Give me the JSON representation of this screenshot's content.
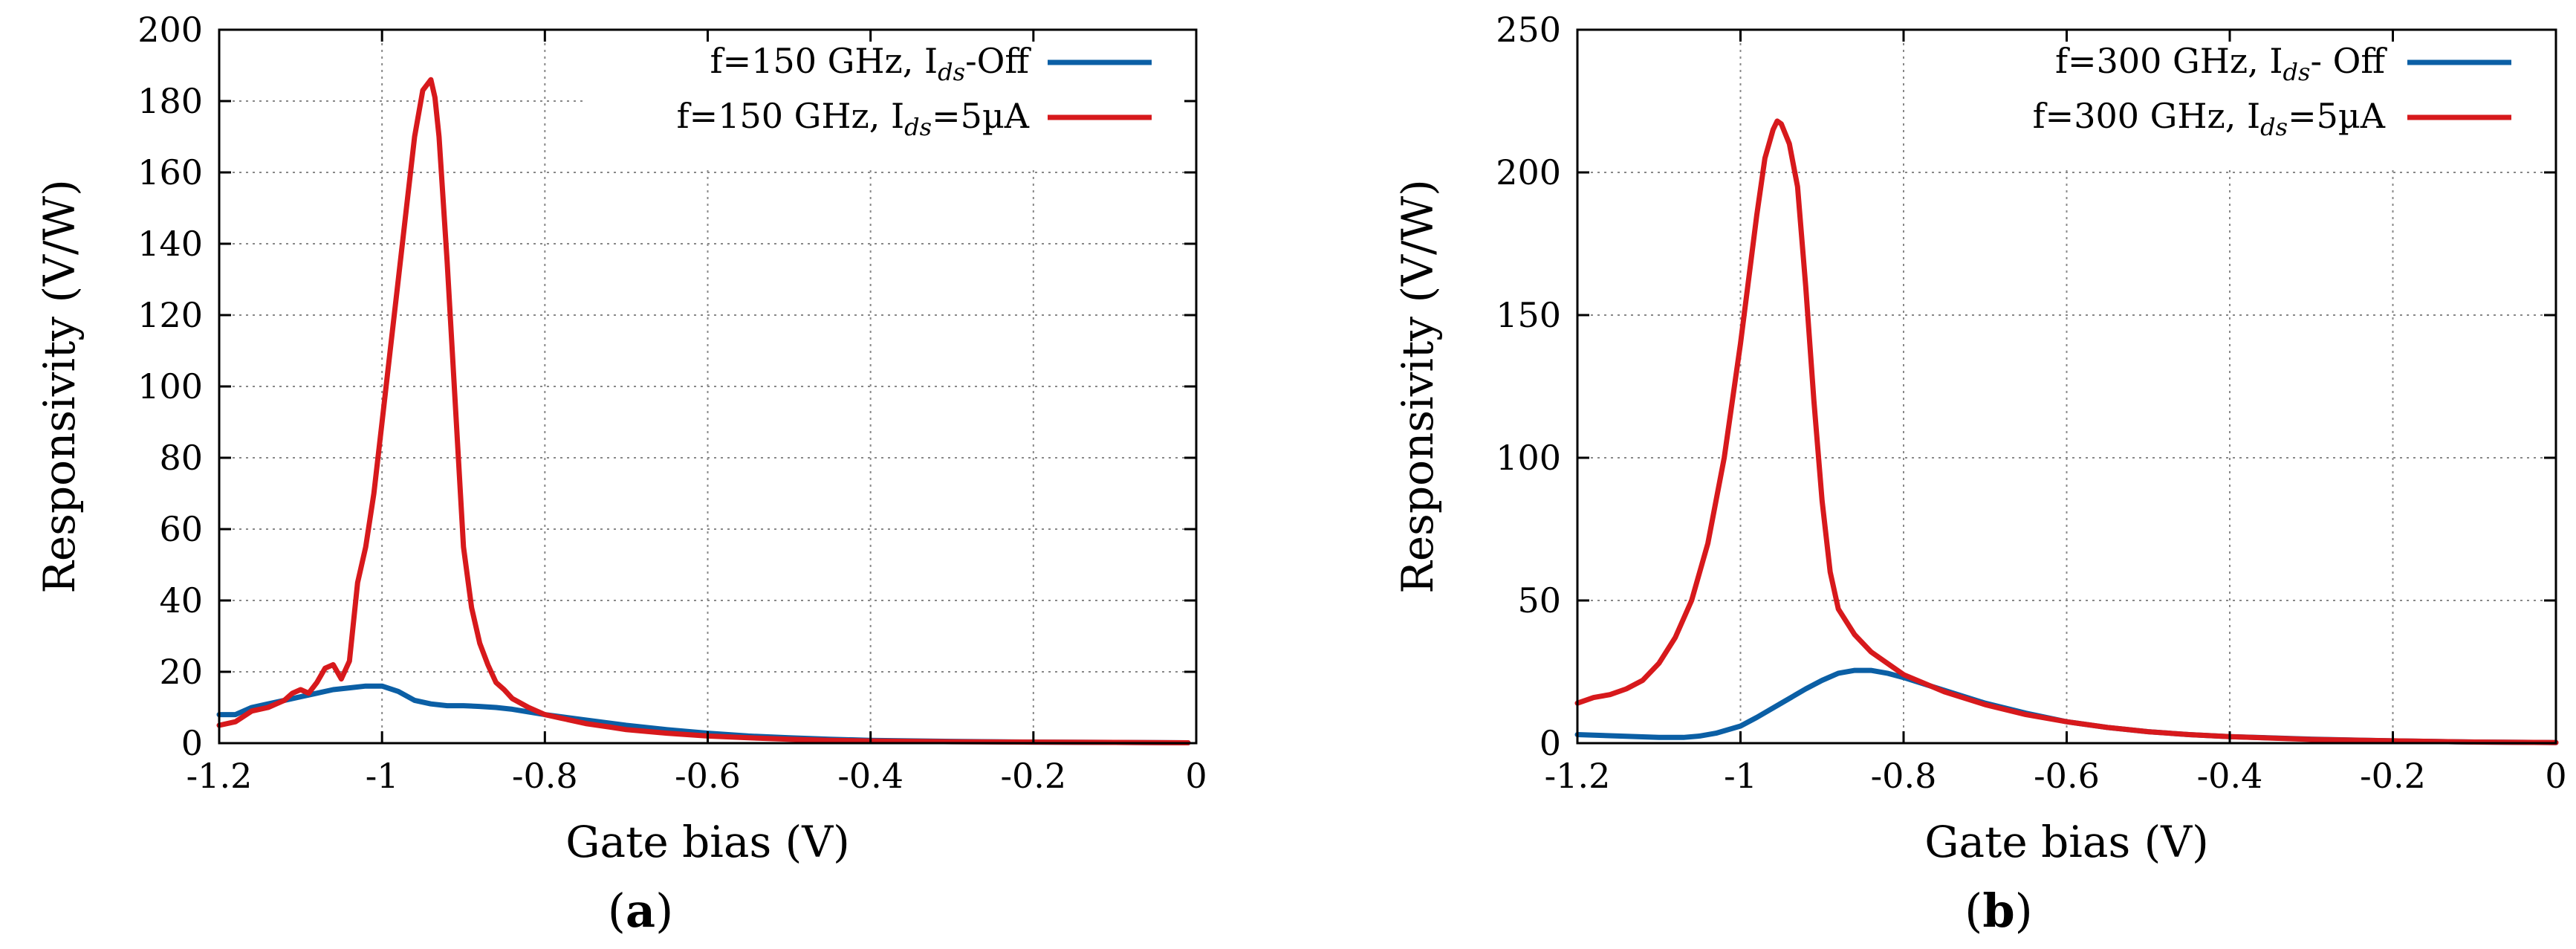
{
  "chart_data": [
    {
      "id": "a",
      "type": "line",
      "caption": "a",
      "xlabel": "Gate bias (V)",
      "ylabel": "Responsivity (V/W)",
      "xlim": [
        -1.2,
        0
      ],
      "ylim": [
        0,
        200
      ],
      "xticks": [
        -1.2,
        -1,
        -0.8,
        -0.6,
        -0.4,
        -0.2,
        0
      ],
      "yticks": [
        0,
        20,
        40,
        60,
        80,
        100,
        120,
        140,
        160,
        180,
        200
      ],
      "xtick_labels": [
        "-1.2",
        "-1",
        "-0.8",
        "-0.6",
        "-0.4",
        "-0.2",
        "0"
      ],
      "ytick_labels": [
        "0",
        "20",
        "40",
        "60",
        "80",
        "100",
        "120",
        "140",
        "160",
        "180",
        "200"
      ],
      "grid": true,
      "legend_position": "top-right",
      "series": [
        {
          "name": "f=150 GHz, I_ds-Off",
          "legend_main": "f=150 GHz, I",
          "legend_sub": "ds",
          "legend_tail": "-Off",
          "color": "#0b5fa5",
          "x": [
            -1.2,
            -1.18,
            -1.16,
            -1.14,
            -1.12,
            -1.1,
            -1.08,
            -1.06,
            -1.04,
            -1.02,
            -1.0,
            -0.98,
            -0.96,
            -0.94,
            -0.92,
            -0.9,
            -0.88,
            -0.86,
            -0.84,
            -0.8,
            -0.75,
            -0.7,
            -0.65,
            -0.6,
            -0.55,
            -0.5,
            -0.45,
            -0.4,
            -0.3,
            -0.2,
            -0.1,
            -0.01
          ],
          "y": [
            8,
            8,
            10,
            11,
            12,
            13,
            14,
            15,
            15.5,
            16,
            16,
            14.5,
            12,
            11,
            10.5,
            10.5,
            10.3,
            10,
            9.5,
            8,
            6.5,
            5,
            3.8,
            2.8,
            2,
            1.5,
            1.1,
            0.8,
            0.5,
            0.3,
            0.2,
            0.1
          ]
        },
        {
          "name": "f=150 GHz, I_ds=5µA",
          "legend_main": "f=150 GHz, I",
          "legend_sub": "ds",
          "legend_tail": "=5µA",
          "color": "#d7191c",
          "x": [
            -1.2,
            -1.18,
            -1.16,
            -1.14,
            -1.12,
            -1.11,
            -1.1,
            -1.09,
            -1.08,
            -1.07,
            -1.06,
            -1.05,
            -1.04,
            -1.03,
            -1.02,
            -1.01,
            -1.0,
            -0.99,
            -0.98,
            -0.97,
            -0.96,
            -0.95,
            -0.94,
            -0.935,
            -0.93,
            -0.92,
            -0.91,
            -0.9,
            -0.89,
            -0.88,
            -0.87,
            -0.86,
            -0.85,
            -0.84,
            -0.82,
            -0.8,
            -0.78,
            -0.75,
            -0.72,
            -0.7,
            -0.65,
            -0.6,
            -0.55,
            -0.5,
            -0.45,
            -0.4,
            -0.3,
            -0.2,
            -0.1,
            -0.01
          ],
          "y": [
            5,
            6,
            9,
            10,
            12,
            14,
            15,
            14,
            17,
            21,
            22,
            18,
            23,
            45,
            55,
            70,
            90,
            110,
            130,
            150,
            170,
            183,
            186,
            181,
            170,
            135,
            95,
            55,
            38,
            28,
            22,
            17,
            15,
            12.5,
            10,
            8,
            7,
            5.5,
            4.5,
            3.8,
            2.8,
            2,
            1.5,
            1.1,
            0.8,
            0.6,
            0.4,
            0.3,
            0.2,
            0.1
          ]
        }
      ]
    },
    {
      "id": "b",
      "type": "line",
      "caption": "b",
      "xlabel": "Gate bias (V)",
      "ylabel": "Responsivity (V/W)",
      "xlim": [
        -1.2,
        0
      ],
      "ylim": [
        0,
        250
      ],
      "xticks": [
        -1.2,
        -1,
        -0.8,
        -0.6,
        -0.4,
        -0.2,
        0
      ],
      "yticks": [
        0,
        50,
        100,
        150,
        200,
        250
      ],
      "xtick_labels": [
        "-1.2",
        "-1",
        "-0.8",
        "-0.6",
        "-0.4",
        "-0.2",
        "0"
      ],
      "ytick_labels": [
        "0",
        "50",
        "100",
        "150",
        "200",
        "250"
      ],
      "grid": true,
      "legend_position": "top-right",
      "series": [
        {
          "name": "f=300 GHz, I_ds- Off",
          "legend_main": "f=300 GHz, I",
          "legend_sub": "ds",
          "legend_tail": "- Off",
          "color": "#0b5fa5",
          "x": [
            -1.2,
            -1.15,
            -1.1,
            -1.07,
            -1.05,
            -1.03,
            -1.0,
            -0.98,
            -0.95,
            -0.92,
            -0.9,
            -0.88,
            -0.86,
            -0.84,
            -0.82,
            -0.8,
            -0.75,
            -0.7,
            -0.65,
            -0.6,
            -0.55,
            -0.5,
            -0.45,
            -0.4,
            -0.3,
            -0.2,
            -0.1,
            0.0
          ],
          "y": [
            3,
            2.5,
            2,
            2,
            2.5,
            3.5,
            6,
            9,
            14,
            19,
            22,
            24.5,
            25.5,
            25.5,
            24.5,
            23,
            18.5,
            14,
            10.5,
            7.5,
            5.5,
            4,
            3,
            2.3,
            1.4,
            0.8,
            0.4,
            0.2
          ]
        },
        {
          "name": "f=300 GHz, I_ds=5µA",
          "legend_main": "f=300 GHz, I",
          "legend_sub": "ds",
          "legend_tail": "=5µA",
          "color": "#d7191c",
          "x": [
            -1.2,
            -1.18,
            -1.16,
            -1.14,
            -1.12,
            -1.1,
            -1.08,
            -1.06,
            -1.04,
            -1.02,
            -1.0,
            -0.98,
            -0.97,
            -0.96,
            -0.955,
            -0.95,
            -0.94,
            -0.93,
            -0.92,
            -0.91,
            -0.9,
            -0.89,
            -0.88,
            -0.86,
            -0.84,
            -0.82,
            -0.8,
            -0.75,
            -0.7,
            -0.65,
            -0.6,
            -0.55,
            -0.5,
            -0.45,
            -0.4,
            -0.3,
            -0.2,
            -0.1,
            0.0
          ],
          "y": [
            14,
            16,
            17,
            19,
            22,
            28,
            37,
            50,
            70,
            100,
            140,
            185,
            205,
            215,
            218,
            217,
            210,
            195,
            160,
            120,
            85,
            60,
            47,
            38,
            32,
            28,
            24,
            18,
            13.5,
            10,
            7.5,
            5.5,
            4,
            3,
            2.3,
            1.3,
            0.8,
            0.4,
            0.2
          ]
        }
      ]
    }
  ]
}
